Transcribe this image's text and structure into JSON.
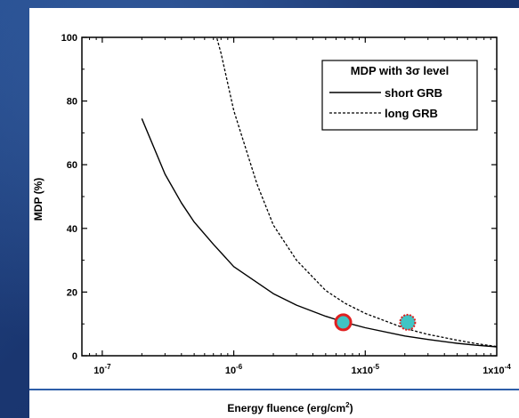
{
  "chart_data": {
    "type": "line",
    "xlabel_main": "Energy fluence (erg/cm",
    "xlabel_sup": "2",
    "xlabel_tail": ")",
    "ylabel": "MDP (%)",
    "x_scale": "log",
    "xlim": [
      7e-08,
      0.0001
    ],
    "ylim": [
      0,
      100
    ],
    "x_ticks": [
      {
        "value": 1e-07,
        "base": "10",
        "exp": "-7"
      },
      {
        "value": 1e-06,
        "base": "10",
        "exp": "-6"
      },
      {
        "value": 1e-05,
        "base": "1x10",
        "exp": "-5"
      },
      {
        "value": 0.0001,
        "base": "1x10",
        "exp": "-4"
      }
    ],
    "y_ticks": [
      "0",
      "20",
      "40",
      "60",
      "80",
      "100"
    ],
    "legend": {
      "title": "MDP with 3σ level",
      "position": "top-right"
    },
    "series": [
      {
        "name": "short GRB",
        "style": "solid",
        "x": [
          2e-07,
          3e-07,
          4e-07,
          5e-07,
          7e-07,
          1e-06,
          2e-06,
          3e-06,
          5e-06,
          7e-06,
          1e-05,
          2e-05,
          3e-05,
          5e-05,
          7e-05,
          0.0001
        ],
        "y": [
          74.5,
          57,
          48,
          42,
          35,
          28,
          19.5,
          15.9,
          12.4,
          10.5,
          8.8,
          6.2,
          5.1,
          3.9,
          3.3,
          2.8
        ]
      },
      {
        "name": "long GRB",
        "style": "dotted",
        "x": [
          7.3e-07,
          8e-07,
          1e-06,
          1.5e-06,
          2e-06,
          3e-06,
          5e-06,
          7e-06,
          1e-05,
          2e-05,
          3e-05,
          5e-05,
          7e-05,
          0.0001
        ],
        "y": [
          101,
          95,
          77,
          54,
          41,
          30,
          20.5,
          16.5,
          13.3,
          8.6,
          6.7,
          4.9,
          3.8,
          2.9
        ]
      }
    ],
    "markers": [
      {
        "x": 6.8e-06,
        "y": 10.5,
        "fill": "#40c4c4",
        "edge": "#e02020",
        "edge_style": "solid"
      },
      {
        "x": 2.1e-05,
        "y": 10.5,
        "fill": "#40c4c4",
        "edge": "#e02020",
        "edge_style": "dotted"
      }
    ]
  }
}
